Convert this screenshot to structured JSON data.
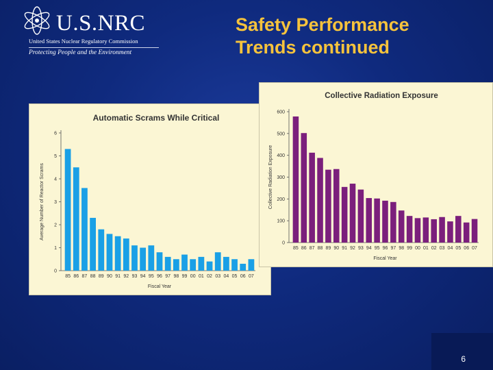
{
  "logo": {
    "name": "U.S.NRC",
    "agency": "United States Nuclear Regulatory Commission",
    "tagline": "Protecting People and the Environment"
  },
  "slide": {
    "title_line1": "Safety Performance",
    "title_line2": "Trends continued",
    "page_number": "6"
  },
  "colors": {
    "background": "#0f2a7e",
    "title": "#f6c33c",
    "panel": "#fbf6d4",
    "scrams_bar": "#1aa0e6",
    "radiation_bar": "#7b1f7c"
  },
  "chart_data": [
    {
      "type": "bar",
      "title": "Automatic Scrams While Critical",
      "xlabel": "Fiscal Year",
      "ylabel": "Average Number of Reactor Scrams",
      "categories": [
        "85",
        "86",
        "87",
        "88",
        "89",
        "90",
        "91",
        "92",
        "93",
        "94",
        "95",
        "96",
        "97",
        "98",
        "99",
        "00",
        "01",
        "02",
        "03",
        "04",
        "05",
        "06",
        "07"
      ],
      "values": [
        5.3,
        4.5,
        3.6,
        2.3,
        1.8,
        1.6,
        1.5,
        1.4,
        1.1,
        1.0,
        1.1,
        0.8,
        0.6,
        0.5,
        0.7,
        0.5,
        0.6,
        0.4,
        0.8,
        0.6,
        0.5,
        0.3,
        0.5
      ],
      "ylim": [
        0,
        6
      ],
      "yticks": [
        0,
        1,
        2,
        3,
        4,
        5,
        6
      ],
      "grid": false
    },
    {
      "type": "bar",
      "title": "Collective Radiation Exposure",
      "xlabel": "Fiscal Year",
      "ylabel": "Collective Radiation Exposure",
      "categories": [
        "85",
        "86",
        "87",
        "88",
        "89",
        "90",
        "91",
        "92",
        "93",
        "94",
        "95",
        "96",
        "97",
        "98",
        "99",
        "00",
        "01",
        "02",
        "03",
        "04",
        "05",
        "06",
        "07"
      ],
      "values": [
        578,
        502,
        412,
        388,
        334,
        337,
        255,
        270,
        243,
        204,
        202,
        192,
        186,
        147,
        122,
        112,
        115,
        107,
        117,
        97,
        122,
        92,
        108
      ],
      "ylim": [
        0,
        600
      ],
      "yticks": [
        0,
        100,
        200,
        300,
        400,
        500,
        600
      ],
      "grid": false
    }
  ]
}
